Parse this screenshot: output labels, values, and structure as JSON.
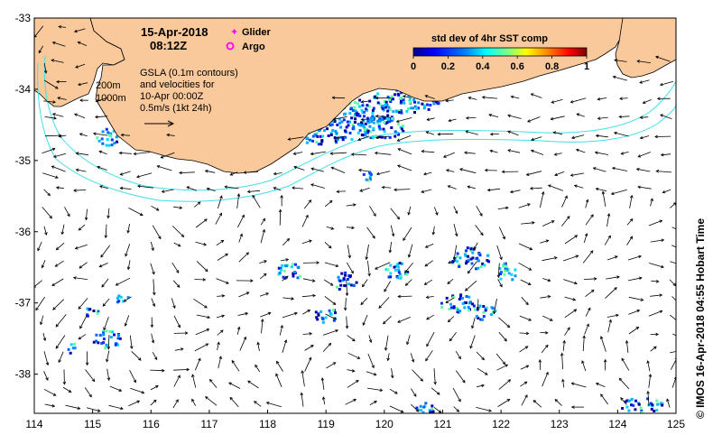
{
  "map": {
    "lon_ticks": [
      "114",
      "115",
      "116",
      "117",
      "118",
      "119",
      "120",
      "121",
      "122",
      "123",
      "124",
      "125"
    ],
    "lat_ticks": [
      "-33",
      "-34",
      "-35",
      "-36",
      "-37",
      "-38"
    ],
    "lon_range": [
      114,
      125
    ],
    "lat_range": [
      -38.55,
      -33
    ]
  },
  "title": {
    "date": "15-Apr-2018",
    "time": "08:12Z"
  },
  "legend": {
    "glider_label": "Glider",
    "argo_label": "Argo",
    "glider_color": "#ff00ff",
    "argo_color": "#ff00ff"
  },
  "gsla": {
    "line1": "GSLA (0.1m contours)",
    "line2": "and velocities for",
    "line3": "10-Apr 00:00Z",
    "line4": "0.5m/s (1kt 24h)"
  },
  "isobaths": {
    "label_200": "200m",
    "label_1000": "1000m"
  },
  "colorbar": {
    "title": "std dev of 4hr SST comp",
    "ticks": [
      "0",
      "0.2",
      "0.4",
      "0.6",
      "0.8",
      "1"
    ],
    "colors": [
      "#00008f",
      "#0000ff",
      "#0080ff",
      "#00ffff",
      "#80ff80",
      "#ffff00",
      "#ff8000",
      "#ff0000",
      "#800000"
    ]
  },
  "credit": {
    "text": "© IMOS 16-Apr-2018 04:55 Hobart Time"
  },
  "colors": {
    "land": "#f9c89b",
    "isobath": "#40e0e8",
    "arrows": "#000000"
  }
}
